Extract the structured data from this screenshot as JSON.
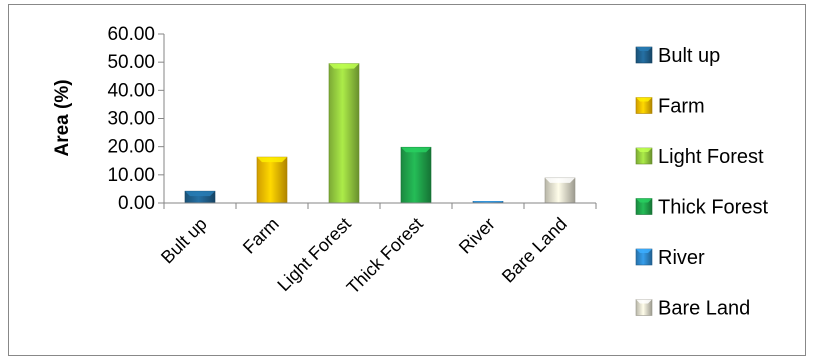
{
  "chart_data": {
    "type": "bar",
    "title": "",
    "xlabel": "",
    "ylabel": "Area (%)",
    "ylim": [
      0,
      60
    ],
    "ytick_step": 10,
    "ytick_decimals": 2,
    "grid": false,
    "legend_position": "right",
    "categories": [
      "Bult up",
      "Farm",
      "Light Forest",
      "Thick Forest",
      "River",
      "Bare Land"
    ],
    "values": [
      4.2,
      16.3,
      49.5,
      19.8,
      0.6,
      8.9
    ],
    "colors": [
      "#1F5F8B",
      "#F5B800",
      "#92C83E",
      "#1FA04A",
      "#2E86C8",
      "#D9D6C6"
    ],
    "legend": [
      "Bult up",
      "Farm",
      "Light Forest",
      "Thick Forest",
      "River",
      "Bare Land"
    ]
  }
}
